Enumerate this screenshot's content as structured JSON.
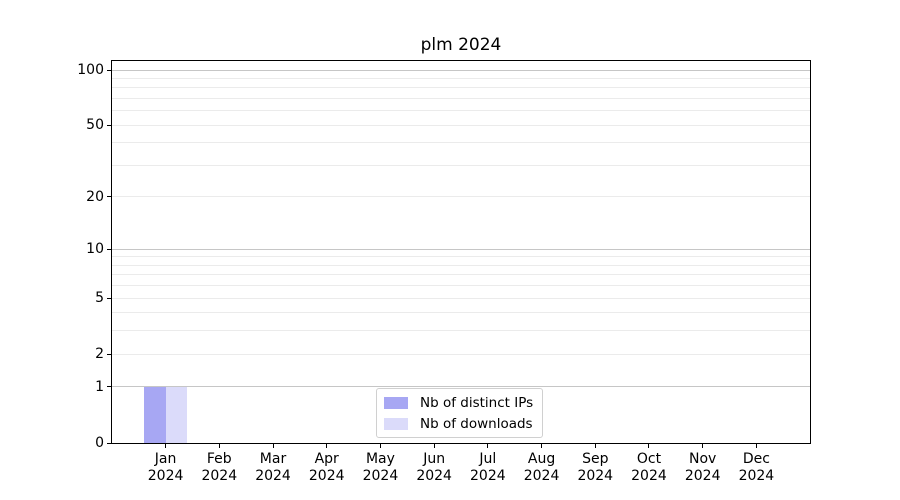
{
  "chart_data": {
    "type": "bar",
    "title": "plm 2024",
    "categories": [
      "Jan",
      "Feb",
      "Mar",
      "Apr",
      "May",
      "Jun",
      "Jul",
      "Aug",
      "Sep",
      "Oct",
      "Nov",
      "Dec"
    ],
    "x_tick_year": "2024",
    "series": [
      {
        "name": "Nb of distinct IPs",
        "color": "#a7a7f3",
        "values": [
          1,
          0,
          0,
          0,
          0,
          0,
          0,
          0,
          0,
          0,
          0,
          0
        ]
      },
      {
        "name": "Nb of downloads",
        "color": "#dbdbfa",
        "values": [
          1,
          0,
          0,
          0,
          0,
          0,
          0,
          0,
          0,
          0,
          0,
          0
        ]
      }
    ],
    "xlabel": "",
    "ylabel": "",
    "ylim": [
      0,
      100
    ],
    "yscale": "log1p",
    "y_tick_labels": [
      "100",
      "50",
      "20",
      "10",
      "5",
      "2",
      "1",
      "0"
    ],
    "y_tick_values": [
      100,
      50,
      20,
      10,
      5,
      2,
      1,
      0
    ],
    "y_major_gridline_values": [
      1,
      10,
      100
    ],
    "y_minor_gridline_values": [
      2,
      3,
      4,
      5,
      6,
      7,
      8,
      9,
      20,
      30,
      40,
      50,
      60,
      70,
      80,
      90
    ],
    "grid": true,
    "legend": {
      "position": "lower center",
      "entries": [
        "Nb of distinct IPs",
        "Nb of downloads"
      ]
    }
  },
  "colors": {
    "background": "#ffffff",
    "spine": "#000000",
    "major_grid": "#c6c6c6",
    "minor_grid": "#ebebeb",
    "text": "#000000",
    "legend_border": "#d0d0d0"
  }
}
